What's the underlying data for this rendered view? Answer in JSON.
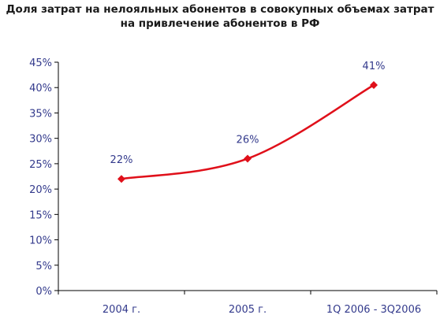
{
  "chart_data": {
    "type": "line",
    "title_line1": "Доля затрат на нелояльных абонентов в совокупных объемах затрат",
    "title_line2": "на привлечение абонентов в РФ",
    "categories": [
      "2004 г.",
      "2005 г.",
      "1Q 2006 - 3Q2006"
    ],
    "series": [
      {
        "values": [
          22,
          26,
          40.5
        ],
        "labels": [
          "22%",
          "26%",
          "41%"
        ]
      }
    ],
    "ylim": [
      0,
      45
    ],
    "yticks": [
      0,
      5,
      10,
      15,
      20,
      25,
      30,
      35,
      40,
      45
    ],
    "ytick_labels": [
      "0%",
      "5%",
      "10%",
      "15%",
      "20%",
      "25%",
      "30%",
      "35%",
      "40%",
      "45%"
    ],
    "grid": false,
    "line_color": "#e0101a",
    "label_color": "#333a8c"
  }
}
